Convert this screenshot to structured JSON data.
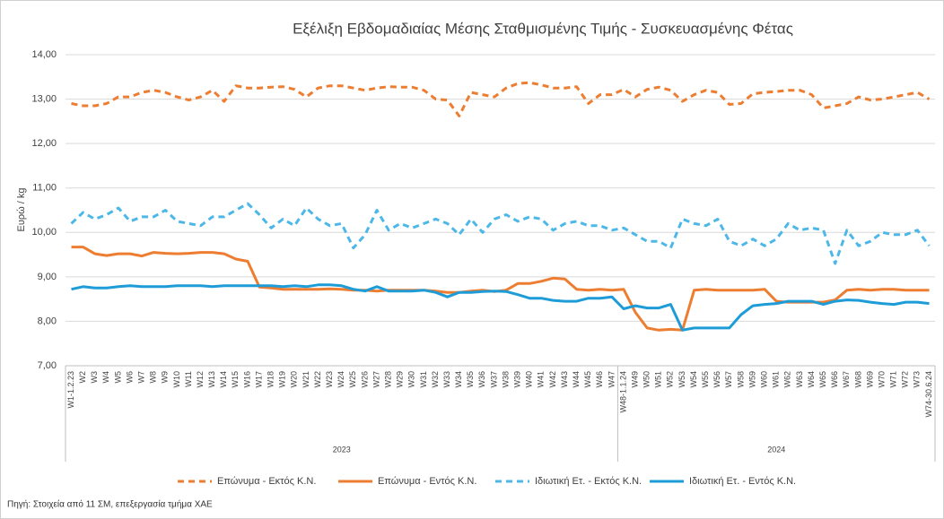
{
  "chart_data": {
    "type": "line",
    "title": "Εξέλιξη Εβδομαδιαίας Μέσης Σταθμισμένης Τιμής - Συσκευασμένης Φέτας",
    "y_label": "Ευρώ / kg",
    "source": "Πηγή: Στοιχεία από 11 ΣΜ, επεξεργασία τμήμα ΧΑΕ",
    "ylim": [
      7,
      14
    ],
    "yticks": [
      {
        "value": 7,
        "label": "7,00"
      },
      {
        "value": 8,
        "label": "8,00"
      },
      {
        "value": 9,
        "label": "9,00"
      },
      {
        "value": 10,
        "label": "10,00"
      },
      {
        "value": 11,
        "label": "11,00"
      },
      {
        "value": 12,
        "label": "12,00"
      },
      {
        "value": 13,
        "label": "13,00"
      },
      {
        "value": 14,
        "label": "14,00"
      }
    ],
    "grid": true,
    "legend": "bottom",
    "categories": [
      "W1-1.2.23",
      "W2",
      "W3",
      "W4",
      "W5",
      "W6",
      "W7",
      "W8",
      "W9",
      "W10",
      "W11",
      "W12",
      "W13",
      "W14",
      "W15",
      "W16",
      "W17",
      "W18",
      "W19",
      "W20",
      "W21",
      "W22",
      "W23",
      "W24",
      "W25",
      "W26",
      "W27",
      "W28",
      "W29",
      "W30",
      "W31",
      "W32",
      "W33",
      "W34",
      "W35",
      "W36",
      "W37",
      "W38",
      "W39",
      "W40",
      "W41",
      "W42",
      "W43",
      "W44",
      "W45",
      "W46",
      "W47",
      "W48-1.1.24",
      "W49",
      "W50",
      "W51",
      "W52",
      "W53",
      "W54",
      "W55",
      "W56",
      "W57",
      "W58",
      "W59",
      "W60",
      "W61",
      "W62",
      "W63",
      "W64",
      "W65",
      "W66",
      "W67",
      "W68",
      "W69",
      "W70",
      "W71",
      "W72",
      "W73",
      "W74-30.6.24"
    ],
    "groups": [
      {
        "label": "2023",
        "count": 47
      },
      {
        "label": "2024",
        "count": 27
      }
    ],
    "series": [
      {
        "name": "Επώνυμα - Εκτός Κ.Ν.",
        "color": "#ED7D31",
        "style": "dashed",
        "values": [
          12.9,
          12.85,
          12.85,
          12.9,
          13.05,
          13.05,
          13.15,
          13.2,
          13.15,
          13.05,
          12.98,
          13.05,
          13.2,
          12.95,
          13.3,
          13.25,
          13.25,
          13.27,
          13.28,
          13.22,
          13.05,
          13.25,
          13.3,
          13.3,
          13.25,
          13.2,
          13.25,
          13.28,
          13.27,
          13.27,
          13.2,
          13.0,
          12.98,
          12.62,
          13.15,
          13.1,
          13.05,
          13.25,
          13.35,
          13.37,
          13.32,
          13.25,
          13.25,
          13.28,
          12.9,
          13.1,
          13.1,
          13.22,
          13.05,
          13.22,
          13.27,
          13.2,
          12.95,
          13.1,
          13.2,
          13.15,
          12.88,
          12.9,
          13.12,
          13.15,
          13.17,
          13.2,
          13.2,
          13.1,
          12.8,
          12.85,
          12.9,
          13.05,
          12.98,
          13.0,
          13.05,
          13.1,
          13.15,
          13.0
        ]
      },
      {
        "name": "Επώνυμα - Εντός Κ.Ν.",
        "color": "#ED7D31",
        "style": "solid",
        "values": [
          9.67,
          9.67,
          9.52,
          9.48,
          9.52,
          9.52,
          9.47,
          9.55,
          9.53,
          9.52,
          9.53,
          9.55,
          9.55,
          9.52,
          9.4,
          9.35,
          8.77,
          8.75,
          8.72,
          8.72,
          8.72,
          8.72,
          8.73,
          8.72,
          8.7,
          8.7,
          8.68,
          8.7,
          8.7,
          8.7,
          8.7,
          8.68,
          8.65,
          8.65,
          8.68,
          8.7,
          8.67,
          8.7,
          8.85,
          8.85,
          8.9,
          8.97,
          8.95,
          8.72,
          8.7,
          8.72,
          8.7,
          8.72,
          8.2,
          7.85,
          7.8,
          7.82,
          7.8,
          8.7,
          8.72,
          8.7,
          8.7,
          8.7,
          8.7,
          8.72,
          8.45,
          8.43,
          8.43,
          8.43,
          8.43,
          8.48,
          8.7,
          8.72,
          8.7,
          8.72,
          8.72,
          8.7,
          8.7,
          8.7
        ]
      },
      {
        "name": "Ιδιωτική Ετ. - Εκτός Κ.Ν.",
        "color": "#4DB8E8",
        "style": "dashed",
        "values": [
          10.2,
          10.45,
          10.3,
          10.4,
          10.55,
          10.25,
          10.35,
          10.35,
          10.5,
          10.25,
          10.2,
          10.15,
          10.35,
          10.35,
          10.5,
          10.65,
          10.4,
          10.1,
          10.3,
          10.15,
          10.55,
          10.3,
          10.15,
          10.2,
          9.65,
          9.95,
          10.5,
          10.05,
          10.2,
          10.1,
          10.2,
          10.3,
          10.2,
          9.95,
          10.3,
          10.0,
          10.3,
          10.4,
          10.25,
          10.35,
          10.3,
          10.05,
          10.2,
          10.25,
          10.15,
          10.15,
          10.05,
          10.1,
          9.95,
          9.8,
          9.8,
          9.65,
          10.3,
          10.2,
          10.15,
          10.3,
          9.8,
          9.7,
          9.85,
          9.7,
          9.85,
          10.2,
          10.05,
          10.1,
          10.05,
          9.3,
          10.05,
          9.7,
          9.8,
          10.0,
          9.95,
          9.95,
          10.05,
          9.7
        ]
      },
      {
        "name": "Ιδιωτική Ετ. - Εντός Κ.Ν.",
        "color": "#1E9CD7",
        "style": "solid",
        "values": [
          8.72,
          8.78,
          8.75,
          8.75,
          8.78,
          8.8,
          8.78,
          8.78,
          8.78,
          8.8,
          8.8,
          8.8,
          8.78,
          8.8,
          8.8,
          8.8,
          8.8,
          8.8,
          8.78,
          8.8,
          8.78,
          8.82,
          8.82,
          8.8,
          8.72,
          8.68,
          8.78,
          8.68,
          8.68,
          8.68,
          8.7,
          8.65,
          8.55,
          8.65,
          8.65,
          8.67,
          8.68,
          8.67,
          8.6,
          8.52,
          8.52,
          8.47,
          8.45,
          8.45,
          8.52,
          8.52,
          8.55,
          8.28,
          8.35,
          8.3,
          8.3,
          8.38,
          7.8,
          7.85,
          7.85,
          7.85,
          7.85,
          8.15,
          8.35,
          8.38,
          8.4,
          8.45,
          8.45,
          8.45,
          8.38,
          8.45,
          8.48,
          8.47,
          8.43,
          8.4,
          8.38,
          8.43,
          8.43,
          8.4
        ]
      }
    ]
  }
}
